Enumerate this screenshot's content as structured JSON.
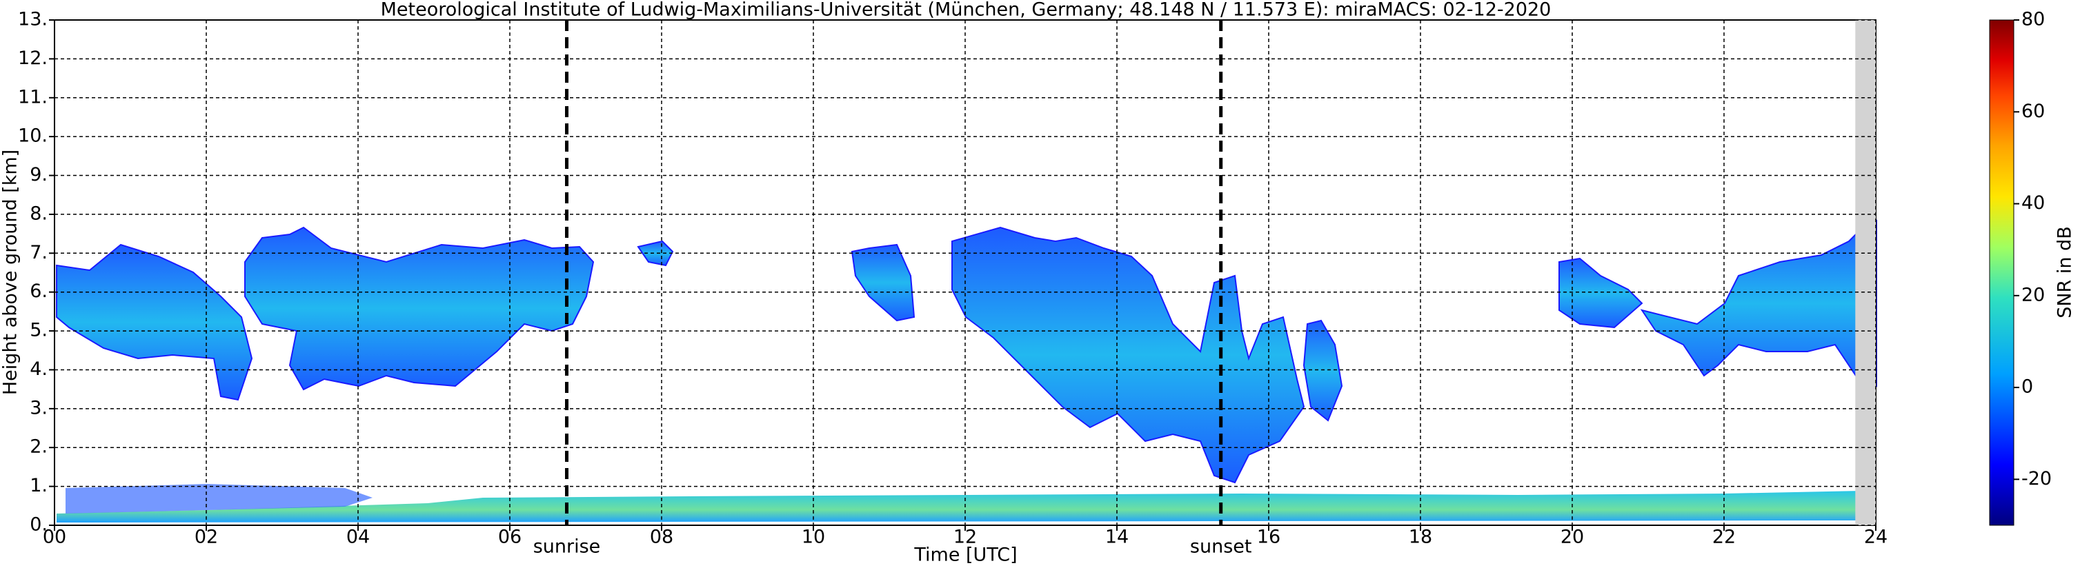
{
  "chart_data": {
    "type": "heatmap",
    "title": "Meteorological Institute of Ludwig-Maximilians-Universität (München, Germany; 48.148 N / 11.573 E):    miraMACS: 02-12-2020",
    "xlabel": "Time [UTC]",
    "ylabel": "Height above ground [km]",
    "xlim": [
      0,
      24
    ],
    "xticks": [
      {
        "value": 0,
        "label": "00"
      },
      {
        "value": 2,
        "label": "02"
      },
      {
        "value": 4,
        "label": "04"
      },
      {
        "value": 6,
        "label": "06"
      },
      {
        "value": 8,
        "label": "08"
      },
      {
        "value": 10,
        "label": "10"
      },
      {
        "value": 12,
        "label": "12"
      },
      {
        "value": 14,
        "label": "14"
      },
      {
        "value": 16,
        "label": "16"
      },
      {
        "value": 18,
        "label": "18"
      },
      {
        "value": 20,
        "label": "20"
      },
      {
        "value": 22,
        "label": "22"
      },
      {
        "value": 24,
        "label": "24"
      }
    ],
    "ylim": [
      0,
      13
    ],
    "yticks": [
      {
        "value": 0,
        "label": "0."
      },
      {
        "value": 1,
        "label": "1."
      },
      {
        "value": 2,
        "label": "2."
      },
      {
        "value": 3,
        "label": "3."
      },
      {
        "value": 4,
        "label": "4."
      },
      {
        "value": 5,
        "label": "5."
      },
      {
        "value": 6,
        "label": "6."
      },
      {
        "value": 7,
        "label": "7."
      },
      {
        "value": 8,
        "label": "8."
      },
      {
        "value": 9,
        "label": "9."
      },
      {
        "value": 10,
        "label": "10."
      },
      {
        "value": 11,
        "label": "11."
      },
      {
        "value": 12,
        "label": "12."
      },
      {
        "value": 13,
        "label": "13."
      }
    ],
    "grid": true,
    "annotations": [
      {
        "x": 6.75,
        "label": "sunrise"
      },
      {
        "x": 15.37,
        "label": "sunset"
      }
    ],
    "shaded_xlim": [
      23.73,
      24
    ],
    "colorbar": {
      "label": "SNR in dB",
      "lim": [
        -30,
        80
      ],
      "ticks": [
        -20,
        0,
        20,
        40,
        60,
        80
      ]
    }
  }
}
